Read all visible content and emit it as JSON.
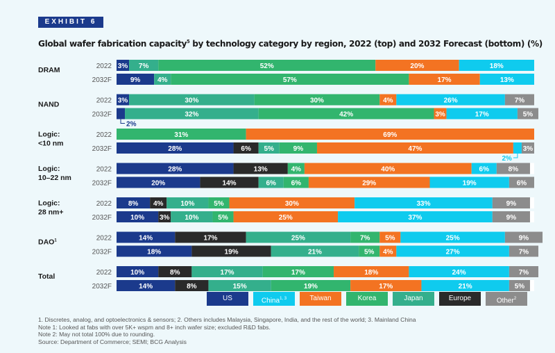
{
  "exhibit_label": "EXHIBIT 6",
  "colors": {
    "US": "#1b3a8c",
    "China": "#0fcbee",
    "Taiwan": "#f37322",
    "Korea": "#32b56e",
    "Japan": "#34af8c",
    "Europe": "#2a2a2a",
    "Other": "#8c8c8c"
  },
  "chart_data": {
    "type": "bar",
    "orientation": "horizontal",
    "stacked": true,
    "title": "Global wafer fabrication capacity",
    "title_superscript": "5",
    "title_rest": " by technology category by region, 2022 (top) and 2032 Forecast (bottom) (%)",
    "series_order": [
      "US",
      "China",
      "Taiwan",
      "Korea",
      "Japan",
      "Europe",
      "Other"
    ],
    "legend": [
      {
        "key": "US",
        "label": "US"
      },
      {
        "key": "China",
        "label": "China",
        "superscript": "1, 3"
      },
      {
        "key": "Taiwan",
        "label": "Taiwan"
      },
      {
        "key": "Korea",
        "label": "Korea"
      },
      {
        "key": "Japan",
        "label": "Japan"
      },
      {
        "key": "Europe",
        "label": "Europe"
      },
      {
        "key": "Other",
        "label": "Other",
        "superscript": "2"
      }
    ],
    "groups": [
      {
        "name": "DRAM",
        "rows": [
          {
            "year": "2022",
            "segments": [
              [
                "US",
                3
              ],
              [
                "Japan",
                7
              ],
              [
                "Korea",
                52
              ],
              [
                "Taiwan",
                20
              ],
              [
                "China",
                18
              ]
            ]
          },
          {
            "year": "2032F",
            "segments": [
              [
                "US",
                9
              ],
              [
                "Japan",
                4
              ],
              [
                "Korea",
                57
              ],
              [
                "Taiwan",
                17
              ],
              [
                "China",
                13
              ]
            ]
          }
        ]
      },
      {
        "name": "NAND",
        "rows": [
          {
            "year": "2022",
            "segments": [
              [
                "US",
                3
              ],
              [
                "Japan",
                30
              ],
              [
                "Korea",
                30
              ],
              [
                "Taiwan",
                4
              ],
              [
                "China",
                26
              ],
              [
                "Other",
                7
              ]
            ]
          },
          {
            "year": "2032F",
            "segments": [
              [
                "US",
                2
              ],
              [
                "Japan",
                32
              ],
              [
                "Korea",
                42
              ],
              [
                "Taiwan",
                3
              ],
              [
                "China",
                17
              ],
              [
                "Other",
                5
              ]
            ]
          }
        ]
      },
      {
        "name": "Logic:\n<10 nm",
        "rows": [
          {
            "year": "2022",
            "segments": [
              [
                "US",
                0
              ],
              [
                "Korea",
                31
              ],
              [
                "Taiwan",
                69
              ]
            ]
          },
          {
            "year": "2032F",
            "segments": [
              [
                "US",
                28
              ],
              [
                "Europe",
                6
              ],
              [
                "Japan",
                5
              ],
              [
                "Korea",
                9
              ],
              [
                "Taiwan",
                47
              ],
              [
                "China",
                2
              ],
              [
                "Other",
                3
              ]
            ]
          }
        ]
      },
      {
        "name": "Logic:\n10–22 nm",
        "rows": [
          {
            "year": "2022",
            "segments": [
              [
                "US",
                28
              ],
              [
                "Europe",
                13
              ],
              [
                "Korea",
                4
              ],
              [
                "Taiwan",
                40
              ],
              [
                "China",
                6
              ],
              [
                "Other",
                8
              ]
            ]
          },
          {
            "year": "2032F",
            "segments": [
              [
                "US",
                20
              ],
              [
                "Europe",
                14
              ],
              [
                "Japan",
                6
              ],
              [
                "Korea",
                6
              ],
              [
                "Taiwan",
                29
              ],
              [
                "China",
                19
              ],
              [
                "Other",
                6
              ]
            ]
          }
        ]
      },
      {
        "name": "Logic:\n28 nm+",
        "rows": [
          {
            "year": "2022",
            "segments": [
              [
                "US",
                8
              ],
              [
                "Europe",
                4
              ],
              [
                "Japan",
                10
              ],
              [
                "Korea",
                5
              ],
              [
                "Taiwan",
                30
              ],
              [
                "China",
                33
              ],
              [
                "Other",
                9
              ]
            ]
          },
          {
            "year": "2032F",
            "segments": [
              [
                "US",
                10
              ],
              [
                "Europe",
                3
              ],
              [
                "Japan",
                10
              ],
              [
                "Korea",
                5
              ],
              [
                "Taiwan",
                25
              ],
              [
                "China",
                37
              ],
              [
                "Other",
                9
              ]
            ]
          }
        ]
      },
      {
        "name": "DAO",
        "name_superscript": "1",
        "rows": [
          {
            "year": "2022",
            "segments": [
              [
                "US",
                14
              ],
              [
                "Europe",
                17
              ],
              [
                "Japan",
                25
              ],
              [
                "Korea",
                7
              ],
              [
                "Taiwan",
                5
              ],
              [
                "China",
                25
              ],
              [
                "Other",
                9
              ]
            ]
          },
          {
            "year": "2032F",
            "segments": [
              [
                "US",
                18
              ],
              [
                "Europe",
                19
              ],
              [
                "Japan",
                21
              ],
              [
                "Korea",
                5
              ],
              [
                "Taiwan",
                4
              ],
              [
                "China",
                27
              ],
              [
                "Other",
                7
              ]
            ]
          }
        ]
      },
      {
        "name": "Total",
        "rows": [
          {
            "year": "2022",
            "segments": [
              [
                "US",
                10
              ],
              [
                "Europe",
                8
              ],
              [
                "Japan",
                17
              ],
              [
                "Korea",
                17
              ],
              [
                "Taiwan",
                18
              ],
              [
                "China",
                24
              ],
              [
                "Other",
                7
              ]
            ]
          },
          {
            "year": "2032F",
            "segments": [
              [
                "US",
                14
              ],
              [
                "Europe",
                8
              ],
              [
                "Japan",
                15
              ],
              [
                "Korea",
                19
              ],
              [
                "Taiwan",
                17
              ],
              [
                "China",
                21
              ],
              [
                "Other",
                5
              ]
            ]
          }
        ]
      }
    ],
    "callouts": [
      {
        "group": 1,
        "row": 1,
        "segment": 0,
        "text": "2%"
      },
      {
        "group": 2,
        "row": 1,
        "segment": 5,
        "text": "2%"
      }
    ]
  },
  "notes": [
    "1. Discretes, analog, and optoelectronics & sensors; 2. Others includes Malaysia, Singapore, India, and the rest of the world; 3. Mainland China",
    "Note 1: Looked at fabs with over 5K+ wspm and 8+ inch wafer size; excluded R&D fabs.",
    "Note 2: May not total 100% due to rounding.",
    "Source: Department of Commerce; SEMI; BCG Analysis"
  ]
}
